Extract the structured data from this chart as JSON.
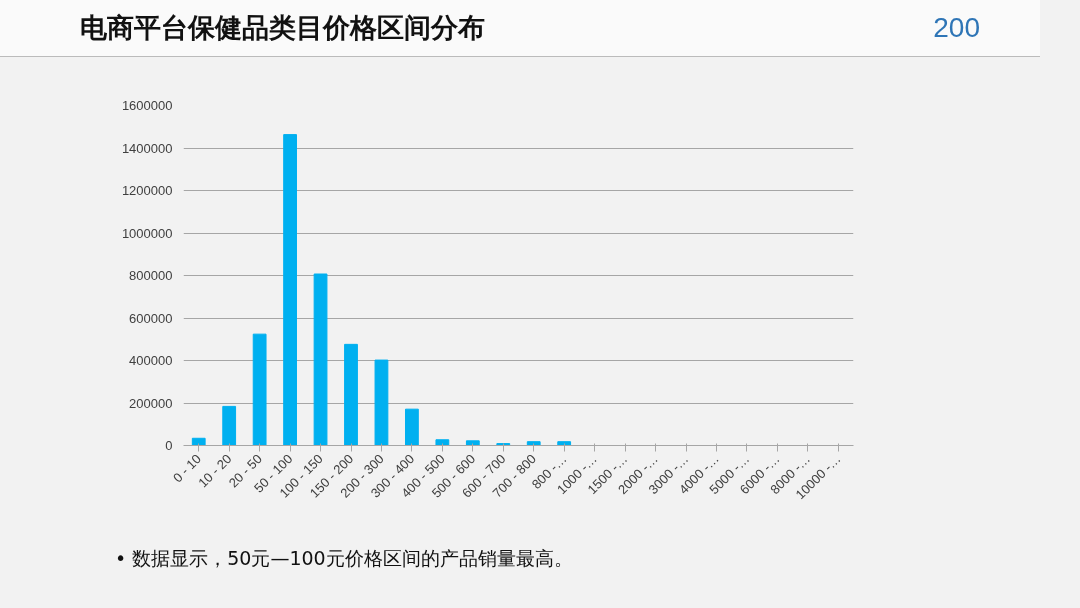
{
  "chart_data": {
    "type": "bar",
    "title": "电商平台保健品类目价格区间分布",
    "categories": [
      "0 - 10",
      "10 - 20",
      "20 - 50",
      "50 - 100",
      "100 - 150",
      "150 - 200",
      "200 - 300",
      "300 - 400",
      "400 - 500",
      "500 - 600",
      "600 - 700",
      "700 - 800",
      "800 -…",
      "1000 -…",
      "1500 -…",
      "2000 -…",
      "3000 -…",
      "4000 -…",
      "5000 -…",
      "6000 -…",
      "8000 -…",
      "10000 -…"
    ],
    "values": [
      34000,
      184000,
      524000,
      1463000,
      807000,
      476000,
      402000,
      171000,
      27000,
      22000,
      9000,
      18000,
      18000,
      0,
      0,
      0,
      0,
      0,
      0,
      0,
      0,
      0
    ],
    "color": "#00b0f0",
    "ylim": [
      0,
      1600000
    ],
    "yticks": [
      0,
      200000,
      400000,
      600000,
      800000,
      1000000,
      1200000,
      1400000,
      1600000
    ],
    "grid": "y",
    "annotations": [
      "200",
      "• 数据显示，50元—100元价格区间的产品销量最高。"
    ]
  }
}
